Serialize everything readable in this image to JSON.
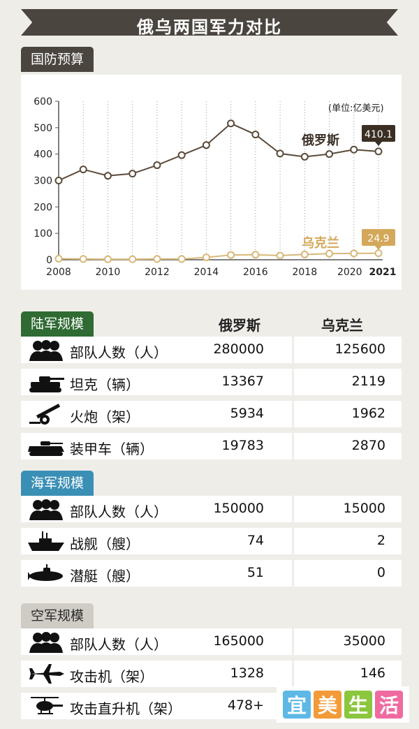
{
  "title": "俄乌两国军力对比",
  "budget_section": "国防预算",
  "unit": "(单位:亿美元)",
  "chart_data": {
    "type": "line",
    "title": "国防预算",
    "x": [
      2008,
      2009,
      2010,
      2011,
      2012,
      2013,
      2014,
      2015,
      2016,
      2017,
      2018,
      2019,
      2020,
      2021
    ],
    "x_tick_labels": [
      "2008",
      "2010",
      "2012",
      "2014",
      "2016",
      "2018",
      "2020",
      "2021"
    ],
    "y_ticks": [
      "0",
      "100",
      "200",
      "300",
      "400",
      "500",
      "600"
    ],
    "ylim": [
      0,
      600
    ],
    "series": [
      {
        "name": "俄罗斯",
        "color": "#5a4a3a",
        "values": [
          300,
          342,
          318,
          326,
          358,
          396,
          434,
          516,
          474,
          402,
          390,
          400,
          417,
          410.1
        ]
      },
      {
        "name": "乌克兰",
        "color": "#d9b878",
        "values": [
          4,
          3,
          2,
          2,
          3,
          3,
          9,
          18,
          19,
          16,
          20,
          23,
          24,
          24.9
        ]
      }
    ],
    "end_labels": [
      "410.1",
      "24.9"
    ]
  },
  "columns": {
    "russia": "俄罗斯",
    "ukraine": "乌克兰"
  },
  "sections": [
    {
      "title": "陆军规模",
      "rows": [
        {
          "label": "部队人数（人）",
          "icon": "troops-icon",
          "russia": "280000",
          "ukraine": "125600"
        },
        {
          "label": "坦克（辆）",
          "icon": "tank-icon",
          "russia": "13367",
          "ukraine": "2119"
        },
        {
          "label": "火炮（架）",
          "icon": "artillery-icon",
          "russia": "5934",
          "ukraine": "1962"
        },
        {
          "label": "装甲车（辆）",
          "icon": "armored-vehicle-icon",
          "russia": "19783",
          "ukraine": "2870"
        }
      ]
    },
    {
      "title": "海军规模",
      "rows": [
        {
          "label": "部队人数（人）",
          "icon": "troops-icon",
          "russia": "150000",
          "ukraine": "15000"
        },
        {
          "label": "战舰（艘）",
          "icon": "warship-icon",
          "russia": "74",
          "ukraine": "2"
        },
        {
          "label": "潜艇（艘）",
          "icon": "submarine-icon",
          "russia": "51",
          "ukraine": "0"
        }
      ]
    },
    {
      "title": "空军规模",
      "rows": [
        {
          "label": "部队人数（人）",
          "icon": "troops-icon",
          "russia": "165000",
          "ukraine": "35000"
        },
        {
          "label": "攻击机（架）",
          "icon": "attack-plane-icon",
          "russia": "1328",
          "ukraine": "146"
        },
        {
          "label": "攻击直升机（架）",
          "icon": "helicopter-icon",
          "russia": "478+",
          "ukraine": ""
        }
      ]
    }
  ],
  "watermark": [
    "宜",
    "美",
    "生",
    "活"
  ],
  "watermark_colors": [
    "#5db8e6",
    "#f29b38",
    "#8cc63f",
    "#f06aa0"
  ]
}
